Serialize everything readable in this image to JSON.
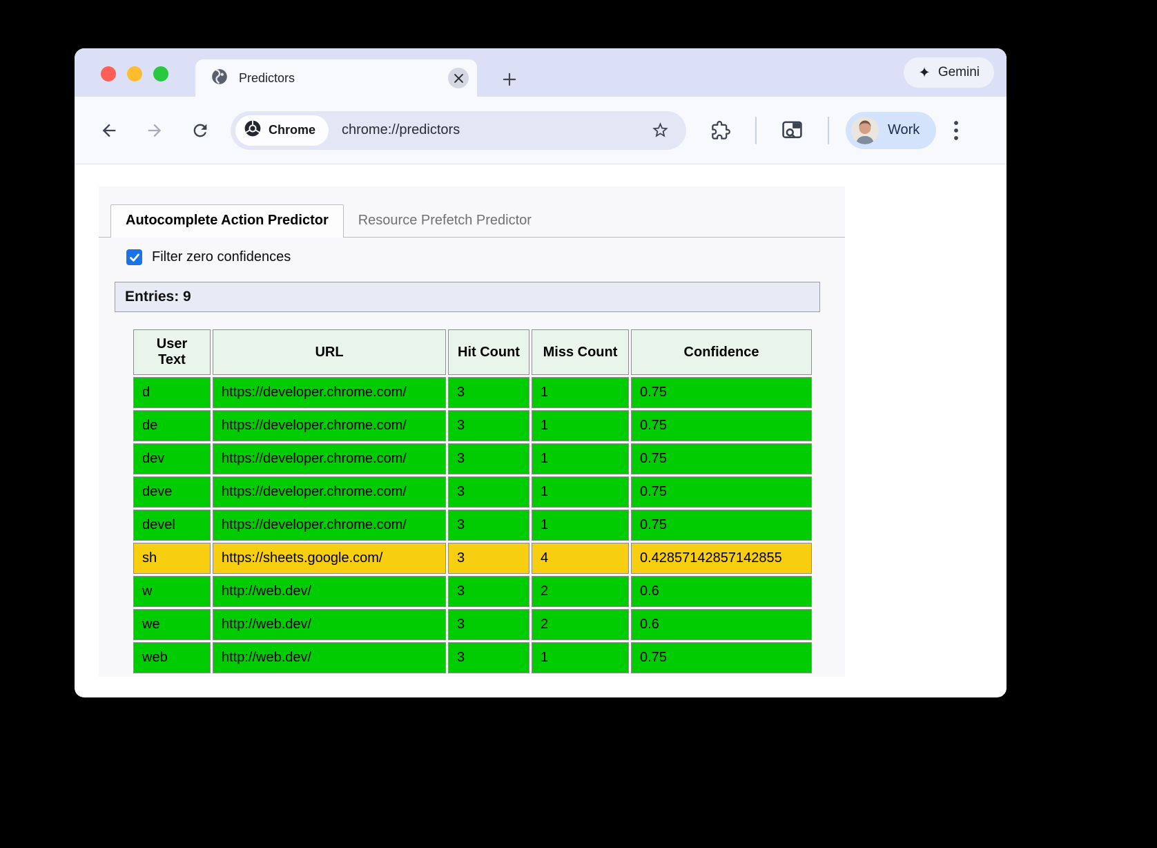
{
  "window_controls": {
    "close_color": "#ff5f57",
    "minimize_color": "#febc2e",
    "zoom_color": "#28c840"
  },
  "tab_strip": {
    "tab_title": "Predictors",
    "gemini_glyph": "✦",
    "gemini_label": "Gemini"
  },
  "toolbar": {
    "chip_label": "Chrome",
    "url": "chrome://predictors",
    "profile_label": "Work"
  },
  "page": {
    "tabs": [
      {
        "label": "Autocomplete Action Predictor"
      },
      {
        "label": "Resource Prefetch Predictor"
      }
    ],
    "active_tab": 0,
    "filter": {
      "label": "Filter zero confidences",
      "checked": true
    },
    "entries_label": "Entries: 9",
    "table": {
      "headers": [
        "User Text",
        "URL",
        "Hit Count",
        "Miss Count",
        "Confidence"
      ],
      "rows": [
        {
          "user_text": "d",
          "url": "https://developer.chrome.com/",
          "hit_count": "3",
          "miss_count": "1",
          "confidence": "0.75",
          "status": "green"
        },
        {
          "user_text": "de",
          "url": "https://developer.chrome.com/",
          "hit_count": "3",
          "miss_count": "1",
          "confidence": "0.75",
          "status": "green"
        },
        {
          "user_text": "dev",
          "url": "https://developer.chrome.com/",
          "hit_count": "3",
          "miss_count": "1",
          "confidence": "0.75",
          "status": "green"
        },
        {
          "user_text": "deve",
          "url": "https://developer.chrome.com/",
          "hit_count": "3",
          "miss_count": "1",
          "confidence": "0.75",
          "status": "green"
        },
        {
          "user_text": "devel",
          "url": "https://developer.chrome.com/",
          "hit_count": "3",
          "miss_count": "1",
          "confidence": "0.75",
          "status": "green"
        },
        {
          "user_text": "sh",
          "url": "https://sheets.google.com/",
          "hit_count": "3",
          "miss_count": "4",
          "confidence": "0.42857142857142855",
          "status": "yellow"
        },
        {
          "user_text": "w",
          "url": "http://web.dev/",
          "hit_count": "3",
          "miss_count": "2",
          "confidence": "0.6",
          "status": "green"
        },
        {
          "user_text": "we",
          "url": "http://web.dev/",
          "hit_count": "3",
          "miss_count": "2",
          "confidence": "0.6",
          "status": "green"
        },
        {
          "user_text": "web",
          "url": "http://web.dev/",
          "hit_count": "3",
          "miss_count": "1",
          "confidence": "0.75",
          "status": "green"
        }
      ]
    },
    "colors": {
      "green": "#00cc00",
      "yellow": "#f8ce10",
      "header_bg": "#e9f5eb",
      "accent_blue": "#1a73e8"
    }
  }
}
